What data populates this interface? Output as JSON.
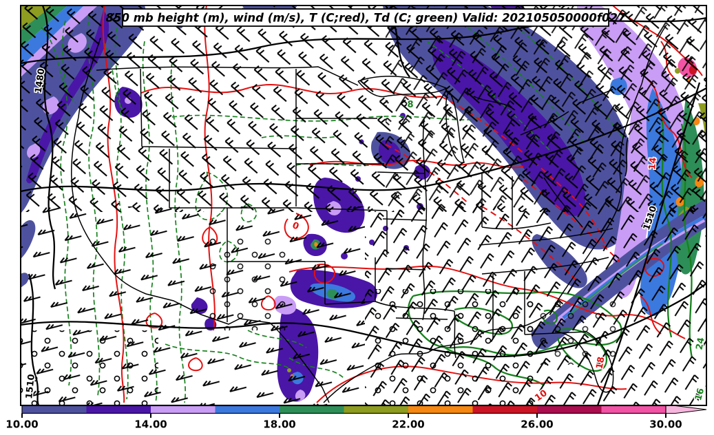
{
  "chart_data": {
    "type": "heatmap",
    "title": "850 mb height (m), wind (m/s), T (C;red), Td (C; green) Valid: 202105050000f027",
    "valid_label": "202105050000f027",
    "pressure_level": "850 mb",
    "legend": {
      "black_contours": "850 mb height (m)",
      "fill_and_barbs": "wind (m/s)",
      "red_contours": "T (C;red)",
      "green_contours": "Td (C; green)"
    },
    "colorbar": {
      "min": 10,
      "max": 30,
      "step": 2,
      "tick_labels": [
        "10.00",
        "14.00",
        "18.00",
        "22.00",
        "26.00",
        "30.00"
      ],
      "tick_values": [
        10,
        14,
        18,
        22,
        26,
        30
      ],
      "segment_colors": [
        "#4e529e",
        "#4a16a8",
        "#c99df5",
        "#3c79de",
        "#2e8e58",
        "#8e9c20",
        "#f68712",
        "#cd1425",
        "#ab0d4e",
        "#f353a4"
      ],
      "over_color": "#f7b6dd",
      "outline_color": "#000000"
    },
    "contour_labels": {
      "height_m": [
        "1480",
        "1510",
        "1510"
      ],
      "temperature_c": [
        "0",
        "10",
        "14",
        "18"
      ],
      "dewpoint_c": [
        "8",
        "16",
        "24"
      ]
    },
    "contour_colors": {
      "height": "#000000",
      "temperature": "#e51010",
      "dewpoint": "#17821d"
    }
  }
}
